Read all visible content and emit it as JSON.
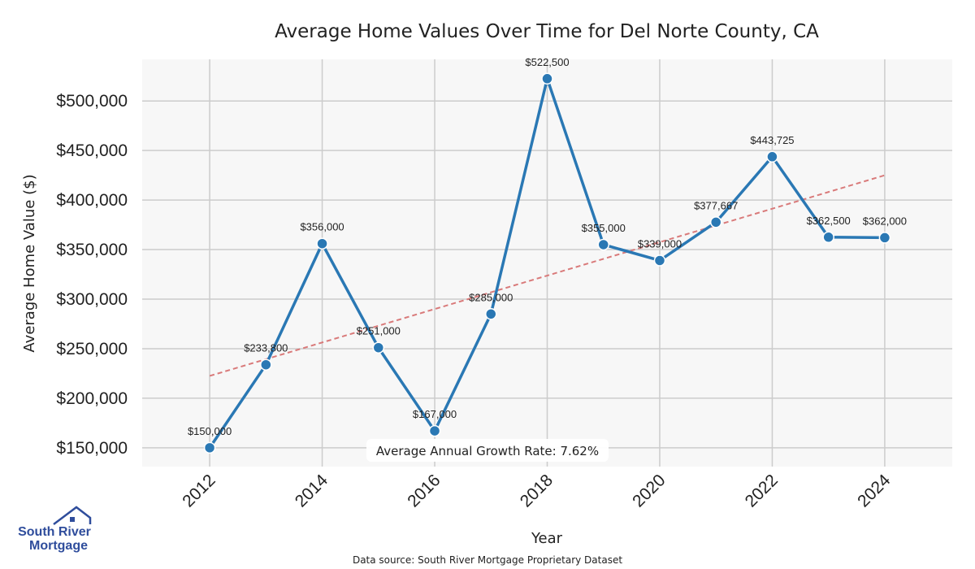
{
  "chart_data": {
    "type": "line",
    "title": "Average Home Values Over Time for Del Norte County, CA",
    "xlabel": "Year",
    "ylabel": "Average Home Value ($)",
    "x": [
      2012,
      2013,
      2014,
      2015,
      2016,
      2017,
      2018,
      2019,
      2020,
      2021,
      2022,
      2023,
      2024
    ],
    "series": [
      {
        "name": "Average Home Value",
        "values": [
          150000,
          233800,
          356000,
          251000,
          167000,
          285000,
          522500,
          355000,
          339000,
          377667,
          443725,
          362500,
          362000
        ],
        "labels": [
          "$150,000",
          "$233,800",
          "$356,000",
          "$251,000",
          "$167,000",
          "$285,000",
          "$522,500",
          "$355,000",
          "$339,000",
          "$377,667",
          "$443,725",
          "$362,500",
          "$362,000"
        ],
        "color": "#2a78b4"
      }
    ],
    "trendline": {
      "start": [
        2012,
        222500
      ],
      "end": [
        2024,
        425000
      ],
      "color": "#d97a7a",
      "style": "dashed"
    },
    "xticks": [
      "2012",
      "2014",
      "2016",
      "2018",
      "2020",
      "2022",
      "2024"
    ],
    "yticks": [
      "$150,000",
      "$200,000",
      "$250,000",
      "$300,000",
      "$350,000",
      "$400,000",
      "$450,000",
      "$500,000"
    ],
    "ytick_values": [
      150000,
      200000,
      250000,
      300000,
      350000,
      400000,
      450000,
      500000
    ],
    "xlim": [
      2010.8,
      2025.2
    ],
    "ylim": [
      131000,
      542000
    ],
    "grid": true,
    "annotation": "Average Annual Growth Rate: 7.62%",
    "background_color": "#f7f7f7",
    "grid_color": "#cccccc"
  },
  "footer": {
    "source": "Data source: South River Mortgage Proprietary Dataset"
  },
  "logo": {
    "line1": "South River",
    "line2": "Mortgage",
    "color": "#2f4d9c"
  }
}
